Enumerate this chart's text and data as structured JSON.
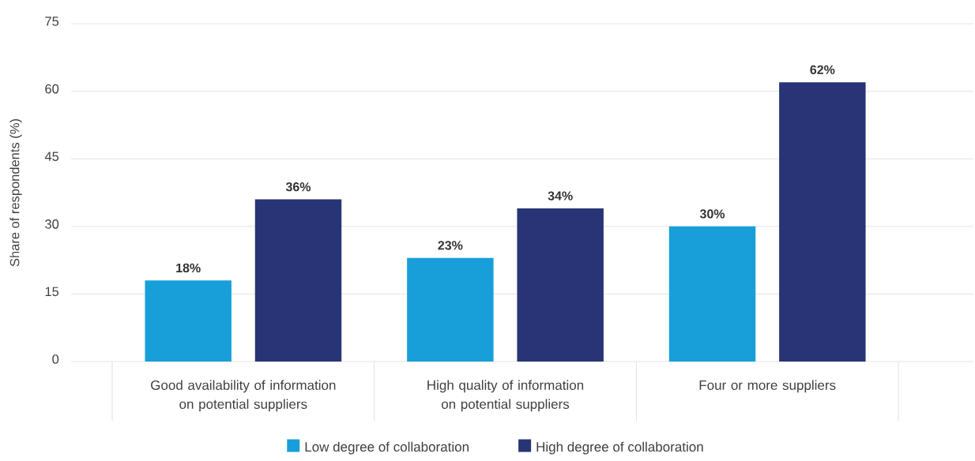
{
  "chart_data": {
    "type": "bar",
    "ylabel": "Share of respondents (%)",
    "categories": [
      "Good availability of information on potential suppliers",
      "High quality of information on potential suppliers",
      "Four or more suppliers"
    ],
    "series": [
      {
        "name": "Low degree of collaboration",
        "color": "#189fda",
        "values": [
          18,
          23,
          30
        ],
        "value_labels": [
          "18%",
          "23%",
          "30%"
        ]
      },
      {
        "name": "High degree of collaboration",
        "color": "#283475",
        "values": [
          36,
          34,
          62
        ],
        "value_labels": [
          "36%",
          "34%",
          "62%"
        ]
      }
    ],
    "ylim": [
      0,
      75
    ],
    "yticks": [
      0,
      15,
      30,
      45,
      60,
      75
    ],
    "grid": "y",
    "legend": "bottom"
  }
}
